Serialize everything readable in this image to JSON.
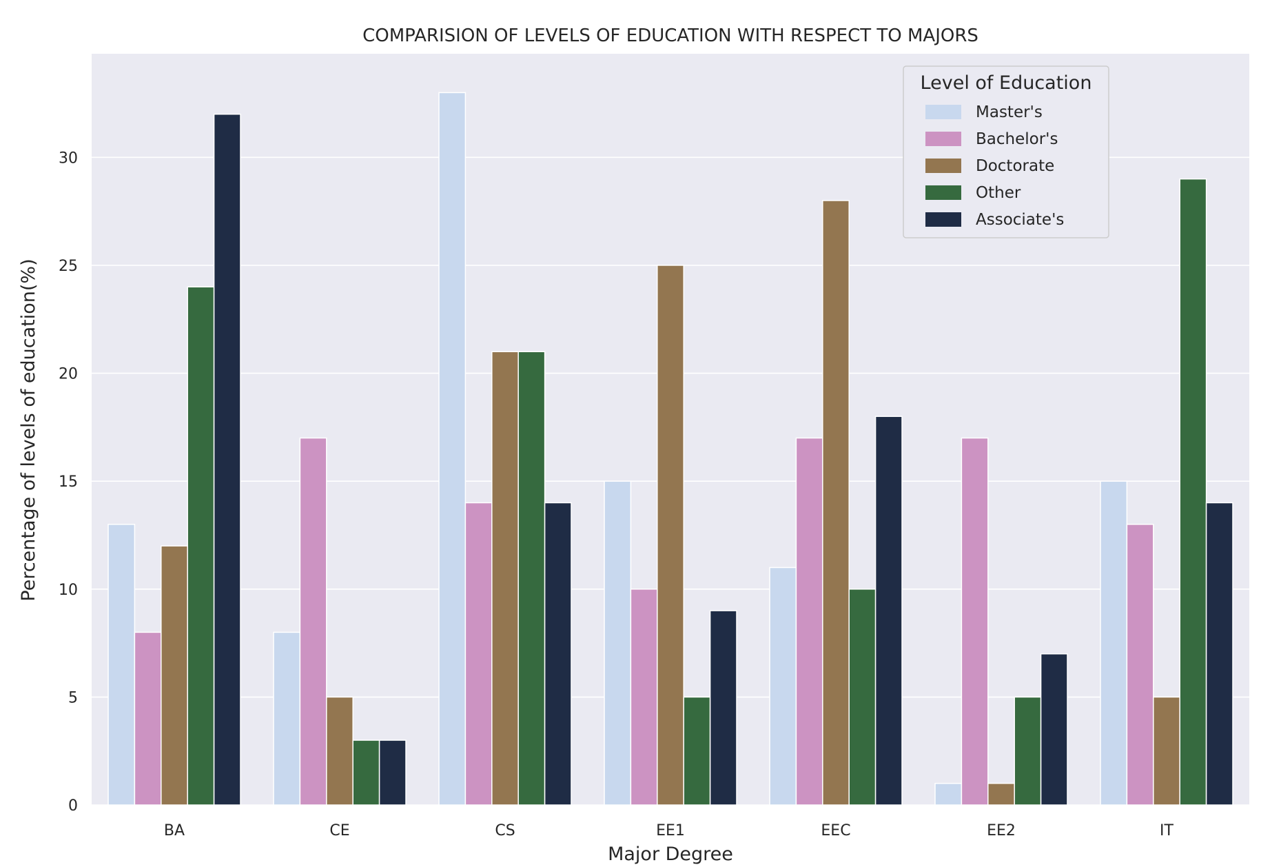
{
  "chart_data": {
    "type": "bar",
    "title": "COMPARISION OF LEVELS OF EDUCATION WITH RESPECT TO MAJORS",
    "xlabel": "Major Degree",
    "ylabel": "Percentage of levels of education(%)",
    "categories": [
      "BA",
      "CE",
      "CS",
      "EE1",
      "EEC",
      "EE2",
      "IT"
    ],
    "ylim": [
      0,
      34.8
    ],
    "yticks": [
      0,
      5,
      10,
      15,
      20,
      25,
      30
    ],
    "grid": true,
    "legend": {
      "title": "Level of Education",
      "position": "top-right"
    },
    "series": [
      {
        "name": "Master's",
        "color": "#c8d8ee",
        "values": [
          13,
          8,
          33,
          15,
          11,
          1,
          15
        ]
      },
      {
        "name": "Bachelor's",
        "color": "#cc93c2",
        "values": [
          8,
          17,
          14,
          10,
          17,
          17,
          13
        ]
      },
      {
        "name": "Doctorate",
        "color": "#937650",
        "values": [
          12,
          5,
          21,
          25,
          28,
          1,
          5
        ]
      },
      {
        "name": "Other",
        "color": "#366a3f",
        "values": [
          24,
          3,
          21,
          5,
          10,
          5,
          29
        ]
      },
      {
        "name": "Associate's",
        "color": "#1f2c45",
        "values": [
          32,
          3,
          14,
          9,
          18,
          7,
          14
        ]
      }
    ]
  },
  "colors": {
    "plot_background": "#eaeaf2",
    "grid": "#ffffff",
    "text": "#262626"
  }
}
